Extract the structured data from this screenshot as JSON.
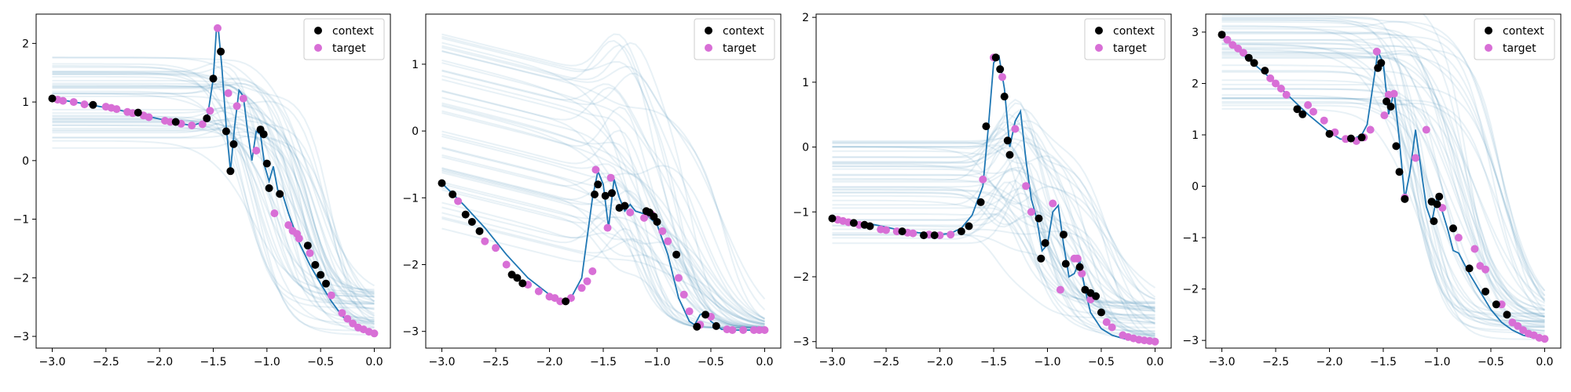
{
  "figure": {
    "background": "#ffffff",
    "colors": {
      "truth": "#1f77b4",
      "samples": "#4f93b6",
      "context": "#000000",
      "target": "#d86fd6"
    },
    "legend_labels": {
      "context": "context",
      "target": "target"
    }
  },
  "chart_data": [
    {
      "type": "line",
      "legend_placement": "top-right",
      "grid": false,
      "xlim": [
        -3.15,
        0.15
      ],
      "ylim": [
        -3.2,
        2.5
      ],
      "xticks": [
        -3.0,
        -2.5,
        -2.0,
        -1.5,
        -1.0,
        -0.5,
        0.0
      ],
      "xtick_labels": [
        "−3.0",
        "−2.5",
        "−2.0",
        "−1.5",
        "−1.0",
        "−0.5",
        "0.0"
      ],
      "yticks": [
        -3,
        -2,
        -1,
        0,
        1,
        2
      ],
      "ytick_labels": [
        "−3",
        "−2",
        "−1",
        "0",
        "1",
        "2"
      ],
      "truth": {
        "x": [
          -3.0,
          -2.7,
          -2.4,
          -2.1,
          -1.8,
          -1.7,
          -1.6,
          -1.55,
          -1.5,
          -1.47,
          -1.45,
          -1.42,
          -1.38,
          -1.34,
          -1.3,
          -1.26,
          -1.22,
          -1.18,
          -1.14,
          -1.1,
          -1.06,
          -1.02,
          -0.98,
          -0.94,
          -0.9,
          -0.85,
          -0.8,
          -0.75,
          -0.7,
          -0.6,
          -0.5,
          -0.4,
          -0.3,
          -0.2,
          -0.1,
          0.0
        ],
        "y": [
          1.06,
          0.97,
          0.87,
          0.75,
          0.63,
          0.6,
          0.65,
          0.8,
          1.4,
          2.26,
          2.2,
          1.6,
          0.6,
          -0.18,
          0.6,
          1.2,
          1.1,
          0.5,
          0.0,
          0.5,
          0.45,
          -0.1,
          -0.35,
          -0.1,
          -0.5,
          -0.6,
          -0.9,
          -1.15,
          -1.4,
          -1.78,
          -2.1,
          -2.4,
          -2.65,
          -2.8,
          -2.9,
          -2.95
        ]
      },
      "context": {
        "x": [
          -3.0,
          -2.62,
          -2.2,
          -1.85,
          -1.56,
          -1.5,
          -1.43,
          -1.38,
          -1.34,
          -1.31,
          -1.06,
          -1.03,
          -1.0,
          -0.98,
          -0.88,
          -0.62,
          -0.55,
          -0.5,
          -0.45
        ],
        "y": [
          1.06,
          0.95,
          0.82,
          0.66,
          0.72,
          1.4,
          1.86,
          0.5,
          -0.18,
          0.28,
          0.53,
          0.45,
          -0.05,
          -0.47,
          -0.57,
          -1.45,
          -1.78,
          -1.95,
          -2.1
        ]
      },
      "target": {
        "x": [
          -2.95,
          -2.9,
          -2.8,
          -2.7,
          -2.5,
          -2.45,
          -2.4,
          -2.3,
          -2.25,
          -2.15,
          -2.1,
          -1.95,
          -1.9,
          -1.8,
          -1.7,
          -1.6,
          -1.53,
          -1.46,
          -1.36,
          -1.28,
          -1.22,
          -1.1,
          -0.93,
          -0.8,
          -0.76,
          -0.72,
          -0.7,
          -0.6,
          -0.4,
          -0.3,
          -0.25,
          -0.2,
          -0.15,
          -0.1,
          -0.05,
          0.0
        ],
        "y": [
          1.04,
          1.02,
          1.0,
          0.96,
          0.92,
          0.9,
          0.88,
          0.83,
          0.81,
          0.77,
          0.74,
          0.68,
          0.66,
          0.63,
          0.6,
          0.62,
          0.85,
          2.26,
          1.15,
          0.93,
          1.06,
          0.17,
          -0.9,
          -1.1,
          -1.2,
          -1.25,
          -1.33,
          -1.58,
          -2.3,
          -2.6,
          -2.7,
          -2.78,
          -2.85,
          -2.88,
          -2.92,
          -2.95
        ]
      },
      "samples": {
        "count": 44,
        "x_grid": [
          -3.0,
          -2.5,
          -2.0,
          -1.5,
          -1.0,
          -0.5,
          0.0
        ],
        "base_left_range": [
          0.2,
          1.8
        ],
        "base_right_range": [
          -3.0,
          -2.2
        ]
      }
    },
    {
      "type": "line",
      "legend_placement": "top-right",
      "grid": false,
      "xlim": [
        -3.15,
        0.15
      ],
      "ylim": [
        -3.25,
        1.75
      ],
      "xticks": [
        -3.0,
        -2.5,
        -2.0,
        -1.5,
        -1.0,
        -0.5,
        0.0
      ],
      "xtick_labels": [
        "−3.0",
        "−2.5",
        "−2.0",
        "−1.5",
        "−1.0",
        "−0.5",
        "0.0"
      ],
      "yticks": [
        -3,
        -2,
        -1,
        0,
        1
      ],
      "ytick_labels": [
        "−3",
        "−2",
        "−1",
        "0",
        "1"
      ],
      "truth": {
        "x": [
          -3.0,
          -2.8,
          -2.6,
          -2.4,
          -2.2,
          -2.0,
          -1.9,
          -1.8,
          -1.7,
          -1.6,
          -1.55,
          -1.5,
          -1.45,
          -1.4,
          -1.35,
          -1.3,
          -1.25,
          -1.2,
          -1.1,
          -1.0,
          -0.9,
          -0.8,
          -0.7,
          -0.65,
          -0.6,
          -0.55,
          -0.5,
          -0.4,
          -0.3,
          -0.2,
          -0.1,
          0.0
        ],
        "y": [
          -0.78,
          -1.1,
          -1.45,
          -1.85,
          -2.2,
          -2.45,
          -2.55,
          -2.5,
          -2.2,
          -1.0,
          -0.6,
          -0.8,
          -1.45,
          -0.72,
          -1.0,
          -1.2,
          -1.1,
          -1.2,
          -1.25,
          -1.4,
          -1.85,
          -2.5,
          -2.85,
          -2.9,
          -2.75,
          -2.72,
          -2.85,
          -2.97,
          -2.98,
          -2.98,
          -2.98,
          -2.98
        ]
      },
      "context": {
        "x": [
          -3.0,
          -2.9,
          -2.78,
          -2.72,
          -2.65,
          -2.35,
          -2.3,
          -2.25,
          -1.85,
          -1.58,
          -1.55,
          -1.48,
          -1.42,
          -1.35,
          -1.3,
          -1.1,
          -1.07,
          -1.03,
          -1.0,
          -0.82,
          -0.63,
          -0.55,
          -0.45
        ],
        "y": [
          -0.78,
          -0.95,
          -1.25,
          -1.36,
          -1.5,
          -2.15,
          -2.2,
          -2.28,
          -2.55,
          -0.95,
          -0.8,
          -0.97,
          -0.93,
          -1.15,
          -1.12,
          -1.2,
          -1.22,
          -1.28,
          -1.36,
          -1.85,
          -2.93,
          -2.75,
          -2.92
        ]
      },
      "target": {
        "x": [
          -2.85,
          -2.6,
          -2.5,
          -2.4,
          -2.2,
          -2.1,
          -2.0,
          -1.95,
          -1.9,
          -1.8,
          -1.7,
          -1.65,
          -1.6,
          -1.57,
          -1.46,
          -1.43,
          -1.25,
          -1.12,
          -1.05,
          -0.95,
          -0.9,
          -0.8,
          -0.75,
          -0.7,
          -0.6,
          -0.5,
          -0.35,
          -0.3,
          -0.2,
          -0.1,
          -0.05,
          0.0
        ],
        "y": [
          -1.05,
          -1.65,
          -1.75,
          -2.0,
          -2.3,
          -2.4,
          -2.48,
          -2.5,
          -2.55,
          -2.5,
          -2.35,
          -2.25,
          -2.1,
          -0.58,
          -1.45,
          -0.7,
          -1.22,
          -1.3,
          -1.25,
          -1.5,
          -1.65,
          -2.2,
          -2.45,
          -2.7,
          -2.9,
          -2.78,
          -2.97,
          -2.98,
          -2.98,
          -2.98,
          -2.98,
          -2.98
        ]
      },
      "samples": {
        "count": 44,
        "x_grid": [
          -3.0,
          -2.5,
          -2.0,
          -1.5,
          -1.0,
          -0.5,
          0.0
        ],
        "base_left_range": [
          -1.5,
          1.5
        ],
        "base_right_range": [
          -3.0,
          -2.8
        ]
      }
    },
    {
      "type": "line",
      "legend_placement": "top-right",
      "grid": false,
      "xlim": [
        -3.15,
        0.15
      ],
      "ylim": [
        -3.1,
        2.05
      ],
      "xticks": [
        -3.0,
        -2.5,
        -2.0,
        -1.5,
        -1.0,
        -0.5,
        0.0
      ],
      "xtick_labels": [
        "−3.0",
        "−2.5",
        "−2.0",
        "−1.5",
        "−1.0",
        "−0.5",
        "0.0"
      ],
      "yticks": [
        -3,
        -2,
        -1,
        0,
        1,
        2
      ],
      "ytick_labels": [
        "−3",
        "−2",
        "−1",
        "0",
        "1",
        "2"
      ],
      "truth": {
        "x": [
          -3.0,
          -2.8,
          -2.6,
          -2.4,
          -2.2,
          -2.0,
          -1.9,
          -1.8,
          -1.7,
          -1.6,
          -1.55,
          -1.5,
          -1.45,
          -1.4,
          -1.35,
          -1.3,
          -1.25,
          -1.2,
          -1.15,
          -1.1,
          -1.05,
          -1.0,
          -0.95,
          -0.9,
          -0.85,
          -0.8,
          -0.75,
          -0.7,
          -0.65,
          -0.6,
          -0.5,
          -0.4,
          -0.3,
          -0.2,
          -0.1,
          0.0
        ],
        "y": [
          -1.1,
          -1.15,
          -1.2,
          -1.27,
          -1.32,
          -1.35,
          -1.33,
          -1.25,
          -1.05,
          -0.6,
          0.3,
          1.3,
          1.4,
          0.9,
          0.0,
          0.4,
          0.55,
          -0.2,
          -0.8,
          -1.1,
          -1.6,
          -1.5,
          -1.0,
          -0.9,
          -1.5,
          -2.0,
          -1.95,
          -1.75,
          -2.2,
          -2.55,
          -2.8,
          -2.9,
          -2.95,
          -2.98,
          -3.0,
          -3.0
        ]
      },
      "context": {
        "x": [
          -3.0,
          -2.8,
          -2.7,
          -2.65,
          -2.35,
          -2.15,
          -2.05,
          -1.8,
          -1.73,
          -1.62,
          -1.57,
          -1.48,
          -1.44,
          -1.4,
          -1.37,
          -1.35,
          -1.08,
          -1.06,
          -1.02,
          -0.85,
          -0.83,
          -0.7,
          -0.65,
          -0.6,
          -0.55,
          -0.5
        ],
        "y": [
          -1.1,
          -1.17,
          -1.2,
          -1.22,
          -1.3,
          -1.36,
          -1.36,
          -1.3,
          -1.22,
          -0.85,
          0.32,
          1.38,
          1.2,
          0.78,
          0.1,
          -0.12,
          -1.1,
          -1.72,
          -1.48,
          -1.35,
          -1.8,
          -1.85,
          -2.2,
          -2.25,
          -2.3,
          -2.55
        ]
      },
      "target": {
        "x": [
          -2.95,
          -2.9,
          -2.85,
          -2.75,
          -2.55,
          -2.5,
          -2.4,
          -2.3,
          -2.25,
          -2.1,
          -2.0,
          -1.9,
          -1.6,
          -1.5,
          -1.42,
          -1.3,
          -1.2,
          -1.15,
          -0.95,
          -0.88,
          -0.75,
          -0.72,
          -0.68,
          -0.6,
          -0.45,
          -0.4,
          -0.3,
          -0.25,
          -0.2,
          -0.15,
          -0.1,
          -0.05,
          0.0
        ],
        "y": [
          -1.12,
          -1.14,
          -1.16,
          -1.2,
          -1.27,
          -1.28,
          -1.3,
          -1.32,
          -1.33,
          -1.35,
          -1.36,
          -1.35,
          -0.5,
          1.38,
          1.08,
          0.28,
          -0.6,
          -1.0,
          -0.87,
          -2.2,
          -1.72,
          -1.72,
          -1.95,
          -2.35,
          -2.7,
          -2.78,
          -2.9,
          -2.93,
          -2.95,
          -2.97,
          -2.98,
          -2.99,
          -3.0
        ]
      },
      "samples": {
        "count": 44,
        "x_grid": [
          -3.0,
          -2.5,
          -2.0,
          -1.5,
          -1.0,
          -0.5,
          0.0
        ],
        "base_left_range": [
          -1.5,
          0.2
        ],
        "base_right_range": [
          -3.0,
          -2.3
        ]
      }
    },
    {
      "type": "line",
      "legend_placement": "top-right",
      "grid": false,
      "xlim": [
        -3.15,
        0.15
      ],
      "ylim": [
        -3.15,
        3.35
      ],
      "xticks": [
        -3.0,
        -2.5,
        -2.0,
        -1.5,
        -1.0,
        -0.5,
        0.0
      ],
      "xtick_labels": [
        "−3.0",
        "−2.5",
        "−2.0",
        "−1.5",
        "−1.0",
        "−0.5",
        "0.0"
      ],
      "yticks": [
        -3,
        -2,
        -1,
        0,
        1,
        2,
        3
      ],
      "ytick_labels": [
        "−3",
        "−2",
        "−1",
        "0",
        "1",
        "2",
        "3"
      ],
      "truth": {
        "x": [
          -3.0,
          -2.8,
          -2.6,
          -2.4,
          -2.2,
          -2.0,
          -1.9,
          -1.8,
          -1.7,
          -1.65,
          -1.6,
          -1.55,
          -1.5,
          -1.45,
          -1.4,
          -1.35,
          -1.3,
          -1.25,
          -1.2,
          -1.1,
          -1.05,
          -1.0,
          -0.95,
          -0.9,
          -0.85,
          -0.8,
          -0.7,
          -0.6,
          -0.5,
          -0.4,
          -0.3,
          -0.2,
          -0.1,
          0.0
        ],
        "y": [
          2.95,
          2.55,
          2.2,
          1.8,
          1.4,
          1.05,
          0.92,
          0.9,
          1.0,
          1.2,
          1.9,
          2.62,
          2.4,
          1.4,
          1.85,
          0.9,
          -0.25,
          0.3,
          1.1,
          -0.4,
          -0.7,
          -0.2,
          -0.5,
          -0.85,
          -1.25,
          -1.3,
          -1.7,
          -2.05,
          -2.4,
          -2.65,
          -2.8,
          -2.9,
          -2.95,
          -2.97
        ]
      },
      "context": {
        "x": [
          -3.0,
          -2.75,
          -2.7,
          -2.6,
          -2.3,
          -2.25,
          -2.0,
          -1.8,
          -1.7,
          -1.55,
          -1.52,
          -1.47,
          -1.43,
          -1.38,
          -1.35,
          -1.3,
          -1.05,
          -1.03,
          -1.0,
          -0.98,
          -0.85,
          -0.7,
          -0.55,
          -0.45,
          -0.35
        ],
        "y": [
          2.95,
          2.5,
          2.4,
          2.25,
          1.5,
          1.4,
          1.02,
          0.93,
          0.95,
          2.3,
          2.4,
          1.65,
          1.55,
          0.78,
          0.28,
          -0.25,
          -0.3,
          -0.68,
          -0.35,
          -0.2,
          -0.82,
          -1.6,
          -2.05,
          -2.3,
          -2.5
        ]
      },
      "target": {
        "x": [
          -2.95,
          -2.9,
          -2.85,
          -2.8,
          -2.55,
          -2.5,
          -2.45,
          -2.4,
          -2.2,
          -2.15,
          -2.05,
          -1.95,
          -1.85,
          -1.75,
          -1.68,
          -1.62,
          -1.56,
          -1.49,
          -1.45,
          -1.4,
          -1.3,
          -1.2,
          -1.1,
          -0.95,
          -0.8,
          -0.65,
          -0.6,
          -0.55,
          -0.4,
          -0.3,
          -0.25,
          -0.2,
          -0.15,
          -0.1,
          -0.05,
          0.0
        ],
        "y": [
          2.85,
          2.75,
          2.68,
          2.6,
          2.1,
          2.0,
          1.9,
          1.78,
          1.58,
          1.45,
          1.28,
          1.05,
          0.92,
          0.88,
          0.95,
          1.1,
          2.62,
          1.38,
          1.78,
          1.8,
          -0.22,
          0.55,
          1.1,
          -0.42,
          -1.0,
          -1.22,
          -1.55,
          -1.62,
          -2.3,
          -2.65,
          -2.72,
          -2.8,
          -2.87,
          -2.9,
          -2.95,
          -2.97
        ]
      },
      "samples": {
        "count": 44,
        "x_grid": [
          -3.0,
          -2.5,
          -2.0,
          -1.5,
          -1.0,
          -0.5,
          0.0
        ],
        "base_left_range": [
          1.5,
          3.4
        ],
        "base_right_range": [
          -3.0,
          -2.4
        ]
      }
    }
  ]
}
